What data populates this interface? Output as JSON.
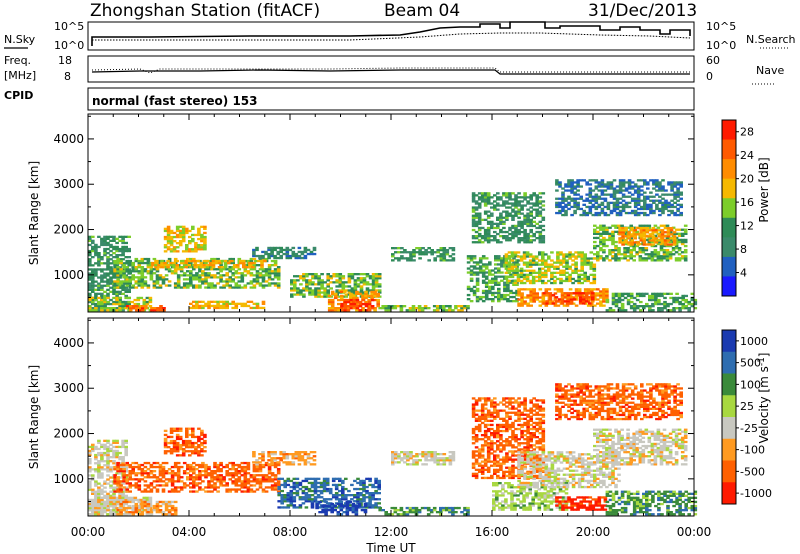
{
  "header": {
    "station": "Zhongshan Station (fitACF)",
    "beam": "Beam 04",
    "date": "31/Dec/2013"
  },
  "noise_panel": {
    "left_label": "N.Sky",
    "right_label": "N.Search",
    "left_ticks": [
      "10^5",
      "10^0"
    ],
    "right_ticks": [
      "10^5",
      "10^0"
    ]
  },
  "freq_panel": {
    "left_label_1": "Freq.",
    "left_label_2": "[MHz]",
    "left_ticks": [
      "18",
      "8"
    ],
    "right_label": "Nave",
    "right_ticks": [
      "60",
      "0"
    ]
  },
  "cpid_panel": {
    "label": "CPID",
    "text": "normal (fast stereo) 153"
  },
  "colors": {
    "power": [
      "#1a1aff",
      "#2060c0",
      "#3a8a6a",
      "#2e8b57",
      "#7ccd2a",
      "#f5b800",
      "#ff8c00",
      "#ff5a00",
      "#ff1a00"
    ],
    "velocity": [
      "#ff1a00",
      "#ff6000",
      "#ff9a20",
      "#c8c8c0",
      "#a8d840",
      "#3a8a3a",
      "#2e6db0",
      "#1a3ab0"
    ]
  },
  "chart_data": [
    {
      "type": "heatmap",
      "panel": "power",
      "xlabel": "",
      "ylabel": "Slant Range [km]",
      "x_ticks": [
        "00:00",
        "04:00",
        "08:00",
        "12:00",
        "16:00",
        "20:00",
        "00:00"
      ],
      "xlim": [
        0,
        24
      ],
      "y_ticks": [
        "1000",
        "2000",
        "3000",
        "4000"
      ],
      "ylim": [
        180,
        4550
      ],
      "colorbar": {
        "label": "Power [dB]",
        "ticks": [
          "4",
          "8",
          "12",
          "16",
          "20",
          "24",
          "28"
        ],
        "range": [
          0,
          30
        ]
      },
      "regions": [
        {
          "t": [
            0.0,
            1.6
          ],
          "r": [
            200,
            1850
          ],
          "v": 10
        },
        {
          "t": [
            0.0,
            2.5
          ],
          "r": [
            200,
            500
          ],
          "v": 16
        },
        {
          "t": [
            1.5,
            3.5
          ],
          "r": [
            200,
            320
          ],
          "v": 26
        },
        {
          "t": [
            3.0,
            4.6
          ],
          "r": [
            1500,
            2050
          ],
          "v": 18
        },
        {
          "t": [
            1.0,
            7.5
          ],
          "r": [
            700,
            1350
          ],
          "v": 14
        },
        {
          "t": [
            2.5,
            7.0
          ],
          "r": [
            1150,
            1300
          ],
          "v": 20
        },
        {
          "t": [
            4.0,
            7.0
          ],
          "r": [
            250,
            400
          ],
          "v": 20
        },
        {
          "t": [
            6.5,
            9.0
          ],
          "r": [
            1350,
            1600
          ],
          "v": 8
        },
        {
          "t": [
            8.0,
            11.5
          ],
          "r": [
            500,
            1000
          ],
          "v": 14
        },
        {
          "t": [
            9.5,
            11.5
          ],
          "r": [
            200,
            650
          ],
          "v": 22
        },
        {
          "t": [
            10.0,
            11.2
          ],
          "r": [
            200,
            450
          ],
          "v": 28
        },
        {
          "t": [
            11.5,
            15.0
          ],
          "r": [
            200,
            320
          ],
          "v": 14
        },
        {
          "t": [
            12.0,
            14.5
          ],
          "r": [
            1300,
            1600
          ],
          "v": 10
        },
        {
          "t": [
            15.0,
            17.0
          ],
          "r": [
            400,
            1400
          ],
          "v": 12
        },
        {
          "t": [
            15.2,
            18.0
          ],
          "r": [
            1700,
            2800
          ],
          "v": 10
        },
        {
          "t": [
            16.5,
            20.0
          ],
          "r": [
            800,
            1500
          ],
          "v": 16
        },
        {
          "t": [
            17.0,
            20.5
          ],
          "r": [
            300,
            700
          ],
          "v": 22
        },
        {
          "t": [
            18.0,
            20.0
          ],
          "r": [
            350,
            600
          ],
          "v": 28
        },
        {
          "t": [
            20.0,
            23.7
          ],
          "r": [
            1300,
            2100
          ],
          "v": 14
        },
        {
          "t": [
            21.0,
            23.2
          ],
          "r": [
            1650,
            2050
          ],
          "v": 22
        },
        {
          "t": [
            20.5,
            24.0
          ],
          "r": [
            200,
            600
          ],
          "v": 12
        },
        {
          "t": [
            18.5,
            23.5
          ],
          "r": [
            2300,
            3100
          ],
          "v": 6
        }
      ]
    },
    {
      "type": "heatmap",
      "panel": "velocity",
      "xlabel": "Time UT",
      "ylabel": "Slant Range [km]",
      "x_ticks": [
        "00:00",
        "04:00",
        "08:00",
        "12:00",
        "16:00",
        "20:00",
        "00:00"
      ],
      "xlim": [
        0,
        24
      ],
      "y_ticks": [
        "1000",
        "2000",
        "3000",
        "4000"
      ],
      "ylim": [
        180,
        4550
      ],
      "colorbar": {
        "label": "Velocity [m s^-1]",
        "ticks": [
          "1000",
          "500",
          "100",
          "25",
          "-25",
          "-100",
          "-500",
          "-1000"
        ]
      },
      "regions": [
        {
          "t": [
            0.0,
            1.5
          ],
          "r": [
            200,
            1850
          ],
          "v": 3
        },
        {
          "t": [
            0.0,
            2.5
          ],
          "r": [
            200,
            600
          ],
          "v": 3
        },
        {
          "t": [
            1.0,
            7.5
          ],
          "r": [
            700,
            1350
          ],
          "v": 1
        },
        {
          "t": [
            3.0,
            4.6
          ],
          "r": [
            1500,
            2100
          ],
          "v": 1
        },
        {
          "t": [
            1.0,
            3.5
          ],
          "r": [
            200,
            500
          ],
          "v": 2
        },
        {
          "t": [
            6.5,
            9.0
          ],
          "r": [
            1300,
            1600
          ],
          "v": 2
        },
        {
          "t": [
            7.5,
            11.5
          ],
          "r": [
            350,
            1000
          ],
          "v": 6
        },
        {
          "t": [
            9.0,
            11.0
          ],
          "r": [
            200,
            500
          ],
          "v": 7
        },
        {
          "t": [
            11.5,
            15.0
          ],
          "r": [
            200,
            350
          ],
          "v": 5
        },
        {
          "t": [
            12.0,
            14.5
          ],
          "r": [
            1300,
            1600
          ],
          "v": 3
        },
        {
          "t": [
            15.2,
            18.0
          ],
          "r": [
            1000,
            2800
          ],
          "v": 1
        },
        {
          "t": [
            16.0,
            19.0
          ],
          "r": [
            300,
            900
          ],
          "v": 4
        },
        {
          "t": [
            17.0,
            21.0
          ],
          "r": [
            800,
            1600
          ],
          "v": 3
        },
        {
          "t": [
            18.5,
            20.5
          ],
          "r": [
            300,
            600
          ],
          "v": 0
        },
        {
          "t": [
            20.0,
            23.7
          ],
          "r": [
            1300,
            2100
          ],
          "v": 3
        },
        {
          "t": [
            20.5,
            24.0
          ],
          "r": [
            200,
            700
          ],
          "v": 5
        },
        {
          "t": [
            18.5,
            23.5
          ],
          "r": [
            2300,
            3100
          ],
          "v": 1
        }
      ]
    }
  ]
}
